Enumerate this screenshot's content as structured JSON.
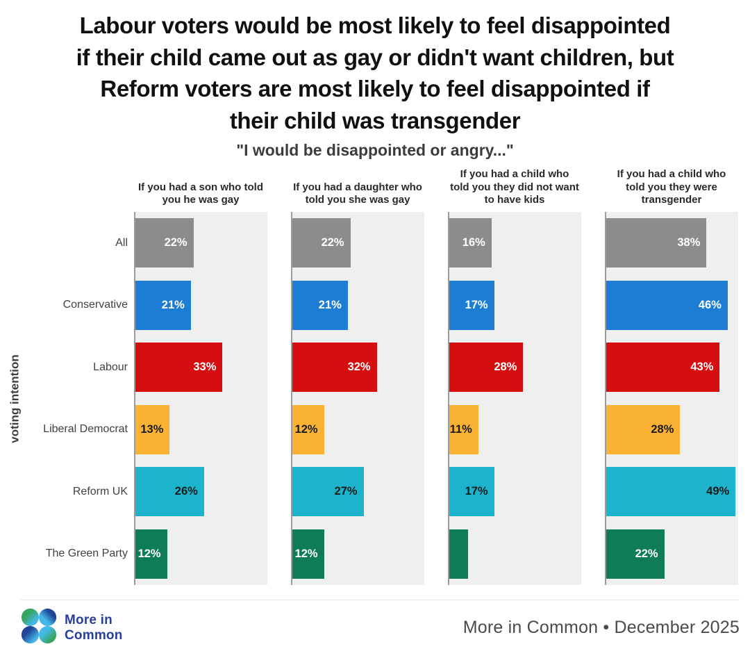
{
  "title": {
    "line1": "Labour voters would be most likely to feel disappointed",
    "line2": "if their child came out as gay or didn't want children, but",
    "line3": "Reform voters are most likely to feel disappointed if",
    "line4": "their child was transgender"
  },
  "subtitle": "\"I would be disappointed or angry...\"",
  "chart_data": {
    "type": "bar",
    "orientation": "horizontal",
    "ylabel": "voting intention",
    "xlim": [
      0,
      50
    ],
    "grid": false,
    "value_suffix": "%",
    "plot_background": "#efefef",
    "axis_line_color": "#9c9c9c",
    "categories": [
      "All",
      "Conservative",
      "Labour",
      "Liberal Democrat",
      "Reform UK",
      "The Green Party"
    ],
    "bar_styles": [
      {
        "name": "all-gray",
        "color": "#8c8c8c",
        "text_color": "#ffffff"
      },
      {
        "name": "conservative-blue",
        "color": "#1d7dd4",
        "text_color": "#ffffff"
      },
      {
        "name": "labour-red",
        "color": "#d50f10",
        "text_color": "#ffffff"
      },
      {
        "name": "libdem-amber",
        "color": "#f9b233",
        "text_color": "#1a1a1a"
      },
      {
        "name": "reform-cyan",
        "color": "#1bb4cc",
        "text_color": "#1a1a1a"
      },
      {
        "name": "green-party-green",
        "color": "#0e7d55",
        "text_color": "#ffffff"
      }
    ],
    "panels": [
      {
        "title": "If you had a son who told you he was gay",
        "values": [
          22,
          21,
          33,
          13,
          26,
          12
        ],
        "labels": [
          "22%",
          "21%",
          "33%",
          "13%",
          "26%",
          "12%"
        ]
      },
      {
        "title": "If you had a daughter who told you she was gay",
        "values": [
          22,
          21,
          32,
          12,
          27,
          12
        ],
        "labels": [
          "22%",
          "21%",
          "32%",
          "12%",
          "27%",
          "12%"
        ]
      },
      {
        "title": "If you had a child who told you they did not want to have kids",
        "values": [
          16,
          17,
          28,
          11,
          17,
          7
        ],
        "labels": [
          "16%",
          "17%",
          "28%",
          "11%",
          "17%",
          ""
        ]
      },
      {
        "title": "If you had a child who told you they were transgender",
        "values": [
          38,
          46,
          43,
          28,
          49,
          22
        ],
        "labels": [
          "38%",
          "46%",
          "43%",
          "28%",
          "49%",
          "22%"
        ]
      }
    ]
  },
  "footer": {
    "logo_line1": "More in",
    "logo_line2": "Common",
    "attribution": "More in Common • December 2025"
  },
  "brand_colors": {
    "logo_navy": "#28409c",
    "logo_cyan": "#45b8e8",
    "logo_green": "#36a561"
  }
}
